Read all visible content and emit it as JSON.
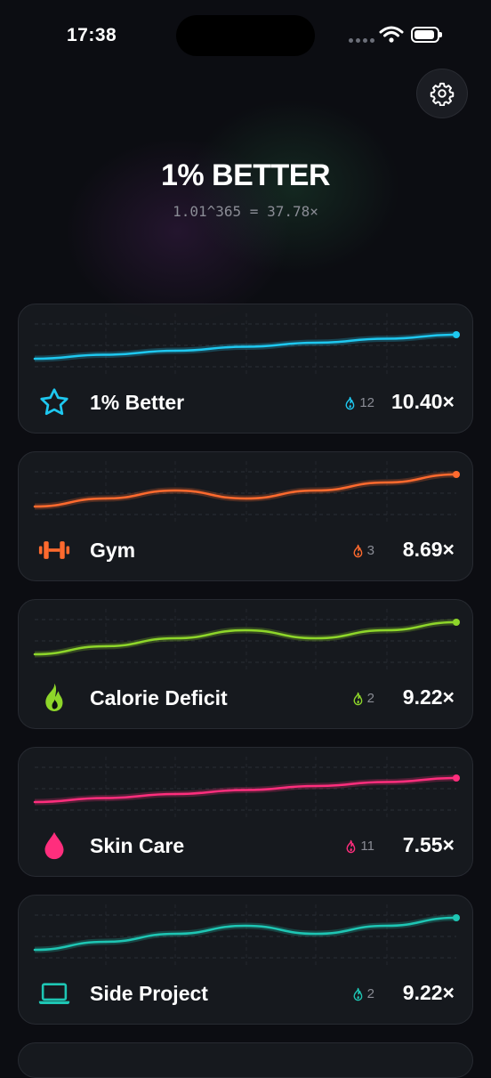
{
  "status": {
    "time": "17:38",
    "battery_level": 0.9
  },
  "header": {
    "title": "1% BETTER",
    "formula": "1.01^365 = 37.78×"
  },
  "habits": [
    {
      "name": "1% Better",
      "icon": "star-icon",
      "color": "#1ec8f0",
      "streak": "12",
      "multiplier": "10.40×",
      "trend": [
        0.2,
        0.3,
        0.4,
        0.5,
        0.6,
        0.7,
        0.8
      ]
    },
    {
      "name": "Gym",
      "icon": "dumbbell-icon",
      "color": "#ff6a2e",
      "streak": "3",
      "multiplier": "8.69×",
      "trend": [
        0.2,
        0.4,
        0.6,
        0.4,
        0.6,
        0.8,
        1.0
      ]
    },
    {
      "name": "Calorie Deficit",
      "icon": "flame-icon",
      "color": "#8ed62a",
      "streak": "2",
      "multiplier": "9.22×",
      "trend": [
        0.2,
        0.4,
        0.6,
        0.8,
        0.6,
        0.8,
        1.0
      ]
    },
    {
      "name": "Skin Care",
      "icon": "drop-icon",
      "color": "#ff2e7d",
      "streak": "11",
      "multiplier": "7.55×",
      "trend": [
        0.2,
        0.3,
        0.4,
        0.5,
        0.6,
        0.7,
        0.8
      ]
    },
    {
      "name": "Side Project",
      "icon": "laptop-icon",
      "color": "#1ec6b4",
      "streak": "2",
      "multiplier": "9.22×",
      "trend": [
        0.2,
        0.4,
        0.6,
        0.8,
        0.6,
        0.8,
        1.0
      ]
    }
  ]
}
